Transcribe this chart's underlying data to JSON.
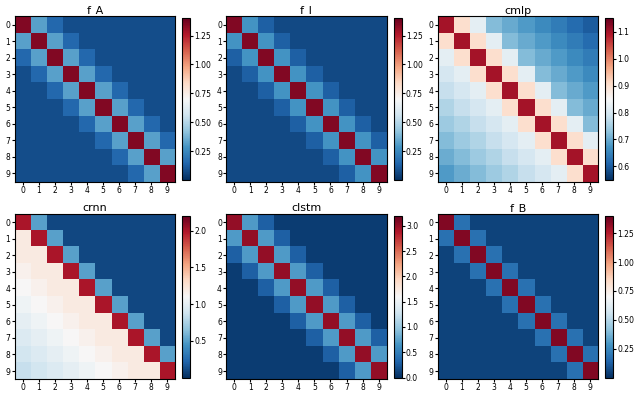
{
  "titles": [
    "f_A",
    "f_I",
    "cmlp",
    "crnn",
    "clstm",
    "f_B"
  ],
  "n": 10,
  "vmins": [
    0.0,
    0.0,
    0.55,
    0.0,
    0.0,
    0.0
  ],
  "vmaxs": [
    1.4,
    1.4,
    1.15,
    2.2,
    3.2,
    1.4
  ],
  "cbar_ticks": [
    [
      0.25,
      0.5,
      0.75,
      1.0,
      1.25
    ],
    [
      0.25,
      0.5,
      0.75,
      1.0,
      1.25
    ],
    [
      0.6,
      0.7,
      0.8,
      0.9,
      1.0,
      1.1
    ],
    [
      0.5,
      1.0,
      1.5,
      2.0
    ],
    [
      0.0,
      0.5,
      1.0,
      1.5,
      2.0,
      2.5,
      3.0
    ],
    [
      0.25,
      0.5,
      0.75,
      1.0,
      1.25
    ]
  ]
}
